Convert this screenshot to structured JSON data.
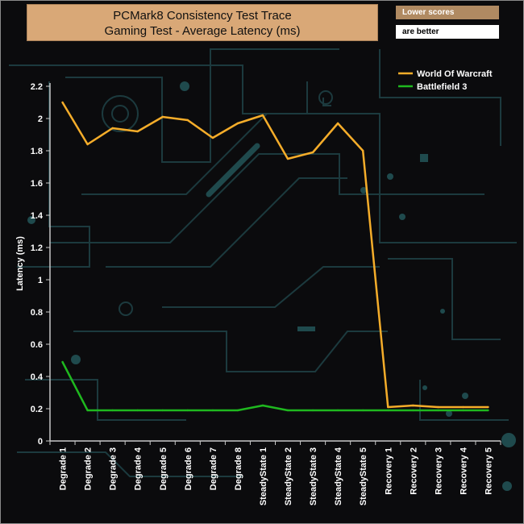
{
  "title": {
    "line1": "PCMark8 Consistency Test Trace",
    "line2": "Gaming Test -  Average Latency (ms)"
  },
  "note": {
    "line1": "Lower scores",
    "line2": "are better"
  },
  "colors": {
    "background": "#0b0b0d",
    "title_box": "#d9a877",
    "axis": "#c8c8c8",
    "text": "#ffffff",
    "series_wow": "#f5ad2a",
    "series_bf3": "#1fb81f",
    "decor": "#1c3a3e"
  },
  "chart_data": {
    "type": "line",
    "title": "PCMark8 Consistency Test Trace - Gaming Test - Average Latency (ms)",
    "xlabel": "",
    "ylabel": "Latency (ms)",
    "ylim": [
      0,
      2.2
    ],
    "yticks": [
      "0",
      "0.2",
      "0.4",
      "0.6",
      "0.8",
      "1",
      "1.2",
      "1.4",
      "1.6",
      "1.8",
      "2",
      "2.2"
    ],
    "grid": false,
    "legend_position": "top-right",
    "categories": [
      "Degrade 1",
      "Degrade 2",
      "Degrade 3",
      "Degrade 4",
      "Degrade 5",
      "Degrade 6",
      "Degrade 7",
      "Degrade 8",
      "SteadyState 1",
      "SteadyState 2",
      "SteadyState 3",
      "SteadyState 4",
      "SteadyState 5",
      "Recovery 1",
      "Recovery 2",
      "Recovery 3",
      "Recovery 4",
      "Recovery 5"
    ],
    "series": [
      {
        "name": "World Of Warcraft",
        "color": "#f5ad2a",
        "values": [
          2.1,
          1.84,
          1.94,
          1.92,
          2.01,
          1.99,
          1.88,
          1.97,
          2.02,
          1.75,
          1.79,
          1.97,
          1.8,
          0.21,
          0.22,
          0.21,
          0.21,
          0.21
        ]
      },
      {
        "name": "Battlefield 3",
        "color": "#1fb81f",
        "values": [
          0.49,
          0.19,
          0.19,
          0.19,
          0.19,
          0.19,
          0.19,
          0.19,
          0.22,
          0.19,
          0.19,
          0.19,
          0.19,
          0.19,
          0.19,
          0.19,
          0.19,
          0.19
        ]
      }
    ]
  }
}
